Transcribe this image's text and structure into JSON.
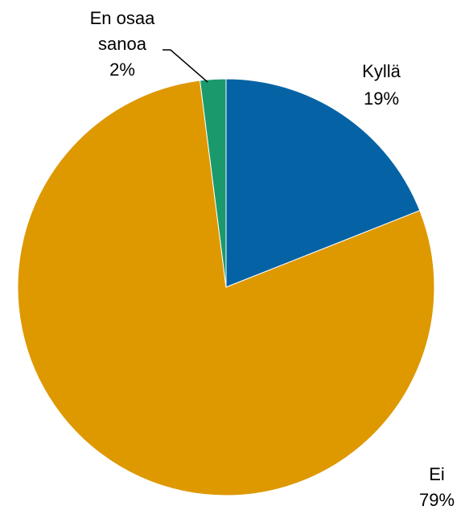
{
  "chart_data": {
    "type": "pie",
    "slices": [
      {
        "name": "Kyllä",
        "value": 19,
        "label": "19%",
        "color": "#0563A5"
      },
      {
        "name": "Ei",
        "value": 79,
        "label": "79%",
        "color": "#DE9800"
      },
      {
        "name": "En osaa sanoa",
        "value": 2,
        "label": "2%",
        "color": "#1A9A6C"
      }
    ],
    "start_angle": "12 o'clock",
    "direction": "clockwise"
  },
  "labels": {
    "kylla": {
      "name_line1": "Kyllä",
      "pct": "19%"
    },
    "ei": {
      "name_line1": "Ei",
      "pct": "79%"
    },
    "en_osaa_sanoa": {
      "name_line1": "En osaa",
      "name_line2": "sanoa",
      "pct": "2%"
    }
  }
}
